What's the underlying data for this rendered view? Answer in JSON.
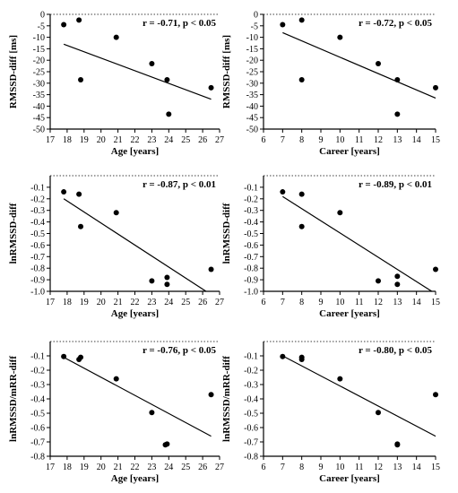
{
  "chart_data": [
    {
      "type": "scatter",
      "xlabel": "Age [years]",
      "ylabel": "RMSSD-diff [ms]",
      "annotation": "r = -0.71, p < 0.05",
      "xlim": [
        17,
        27
      ],
      "ylim": [
        -50,
        0
      ],
      "xticks": [
        17,
        18,
        19,
        20,
        21,
        22,
        23,
        24,
        25,
        26,
        27
      ],
      "yticks": [
        0,
        -5,
        -10,
        -15,
        -20,
        -25,
        -30,
        -35,
        -40,
        -45,
        -50
      ],
      "ytick_labels": [
        "0",
        "-5",
        "-10",
        "-15",
        "-20",
        "-25",
        "-30",
        "-35",
        "-40",
        "-45",
        "-50"
      ],
      "points": [
        [
          17.8,
          -4.5
        ],
        [
          18.7,
          -2.5
        ],
        [
          18.8,
          -28.5
        ],
        [
          20.9,
          -10
        ],
        [
          23.0,
          -21.5
        ],
        [
          23.9,
          -28.5
        ],
        [
          24.0,
          -43.5
        ],
        [
          26.5,
          -32
        ]
      ],
      "fit": [
        [
          17.8,
          -13
        ],
        [
          26.5,
          -37
        ]
      ]
    },
    {
      "type": "scatter",
      "xlabel": "Career [years]",
      "ylabel": "RMSSD-diff [ms]",
      "annotation": "r = -0.72, p < 0.05",
      "xlim": [
        6,
        15
      ],
      "ylim": [
        -50,
        0
      ],
      "xticks": [
        6,
        7,
        8,
        9,
        10,
        11,
        12,
        13,
        14,
        15
      ],
      "yticks": [
        0,
        -5,
        -10,
        -15,
        -20,
        -25,
        -30,
        -35,
        -40,
        -45,
        -50
      ],
      "ytick_labels": [
        "0",
        "-5",
        "-10",
        "-15",
        "-20",
        "-25",
        "-30",
        "-35",
        "-40",
        "-45",
        "-50"
      ],
      "points": [
        [
          7,
          -4.5
        ],
        [
          8,
          -2.5
        ],
        [
          8,
          -28.5
        ],
        [
          10,
          -10
        ],
        [
          12,
          -21.5
        ],
        [
          13,
          -28.5
        ],
        [
          13,
          -43.5
        ],
        [
          15,
          -32
        ]
      ],
      "fit": [
        [
          7,
          -8
        ],
        [
          15,
          -36.5
        ]
      ]
    },
    {
      "type": "scatter",
      "xlabel": "Age [years]",
      "ylabel": "lnRMSSD-diff",
      "annotation": "r = -0.87, p < 0.01",
      "xlim": [
        17,
        27
      ],
      "ylim": [
        -1.0,
        0
      ],
      "xticks": [
        17,
        18,
        19,
        20,
        21,
        22,
        23,
        24,
        25,
        26,
        27
      ],
      "yticks": [
        -0.1,
        -0.2,
        -0.3,
        -0.4,
        -0.5,
        -0.6,
        -0.7,
        -0.8,
        -0.9,
        -1.0
      ],
      "ytick_labels": [
        "-0.1",
        "-0.2",
        "-0.3",
        "-0.4",
        "-0.5",
        "-0.6",
        "-0.7",
        "-0.8",
        "-0.9",
        "-1.0"
      ],
      "points": [
        [
          17.8,
          -0.14
        ],
        [
          18.7,
          -0.16
        ],
        [
          18.8,
          -0.44
        ],
        [
          20.9,
          -0.32
        ],
        [
          23.0,
          -0.91
        ],
        [
          23.9,
          -0.94
        ],
        [
          23.9,
          -0.88
        ],
        [
          26.5,
          -0.81
        ]
      ],
      "fit": [
        [
          17.8,
          -0.2
        ],
        [
          26.2,
          -1.0
        ]
      ]
    },
    {
      "type": "scatter",
      "xlabel": "Career [years]",
      "ylabel": "lnRMSSD-diff",
      "annotation": "r = -0.89, p < 0.01",
      "xlim": [
        6,
        15
      ],
      "ylim": [
        -1.0,
        0
      ],
      "xticks": [
        6,
        7,
        8,
        9,
        10,
        11,
        12,
        13,
        14,
        15
      ],
      "yticks": [
        -0.1,
        -0.2,
        -0.3,
        -0.4,
        -0.5,
        -0.6,
        -0.7,
        -0.8,
        -0.9,
        -1.0
      ],
      "ytick_labels": [
        "-0.1",
        "-0.2",
        "-0.3",
        "-0.4",
        "-0.5",
        "-0.6",
        "-0.7",
        "-0.8",
        "-0.9",
        "-1.0"
      ],
      "points": [
        [
          7,
          -0.14
        ],
        [
          8,
          -0.16
        ],
        [
          8,
          -0.44
        ],
        [
          10,
          -0.32
        ],
        [
          12,
          -0.91
        ],
        [
          13,
          -0.94
        ],
        [
          13,
          -0.87
        ],
        [
          15,
          -0.81
        ]
      ],
      "fit": [
        [
          7,
          -0.18
        ],
        [
          14.8,
          -1.0
        ]
      ]
    },
    {
      "type": "scatter",
      "xlabel": "Age [years]",
      "ylabel": "lnRMSSD/mRR-diff",
      "annotation": "r = -0.76, p < 0.05",
      "xlim": [
        17,
        27
      ],
      "ylim": [
        -0.8,
        0
      ],
      "xticks": [
        17,
        18,
        19,
        20,
        21,
        22,
        23,
        24,
        25,
        26,
        27
      ],
      "yticks": [
        -0.1,
        -0.2,
        -0.3,
        -0.4,
        -0.5,
        -0.6,
        -0.7,
        -0.8
      ],
      "ytick_labels": [
        "-0.1",
        "-0.2",
        "-0.3",
        "-0.4",
        "-0.5",
        "-0.6",
        "-0.7",
        "-0.8"
      ],
      "points": [
        [
          17.8,
          -0.105
        ],
        [
          18.7,
          -0.125
        ],
        [
          18.8,
          -0.11
        ],
        [
          20.9,
          -0.26
        ],
        [
          23.0,
          -0.495
        ],
        [
          23.8,
          -0.72
        ],
        [
          23.9,
          -0.715
        ],
        [
          26.5,
          -0.37
        ]
      ],
      "fit": [
        [
          17.8,
          -0.11
        ],
        [
          26.5,
          -0.66
        ]
      ]
    },
    {
      "type": "scatter",
      "xlabel": "Career [years]",
      "ylabel": "lnRMSSD/mRR-diff",
      "annotation": "r = -0.80, p < 0.05",
      "xlim": [
        6,
        15
      ],
      "ylim": [
        -0.8,
        0
      ],
      "xticks": [
        6,
        7,
        8,
        9,
        10,
        11,
        12,
        13,
        14,
        15
      ],
      "yticks": [
        -0.1,
        -0.2,
        -0.3,
        -0.4,
        -0.5,
        -0.6,
        -0.7,
        -0.8
      ],
      "ytick_labels": [
        "-0.1",
        "-0.2",
        "-0.3",
        "-0.4",
        "-0.5",
        "-0.6",
        "-0.7",
        "-0.8"
      ],
      "points": [
        [
          7,
          -0.105
        ],
        [
          8,
          -0.125
        ],
        [
          8,
          -0.11
        ],
        [
          10,
          -0.26
        ],
        [
          12,
          -0.495
        ],
        [
          13,
          -0.72
        ],
        [
          13,
          -0.715
        ],
        [
          15,
          -0.37
        ]
      ],
      "fit": [
        [
          7,
          -0.1
        ],
        [
          15,
          -0.66
        ]
      ]
    }
  ]
}
